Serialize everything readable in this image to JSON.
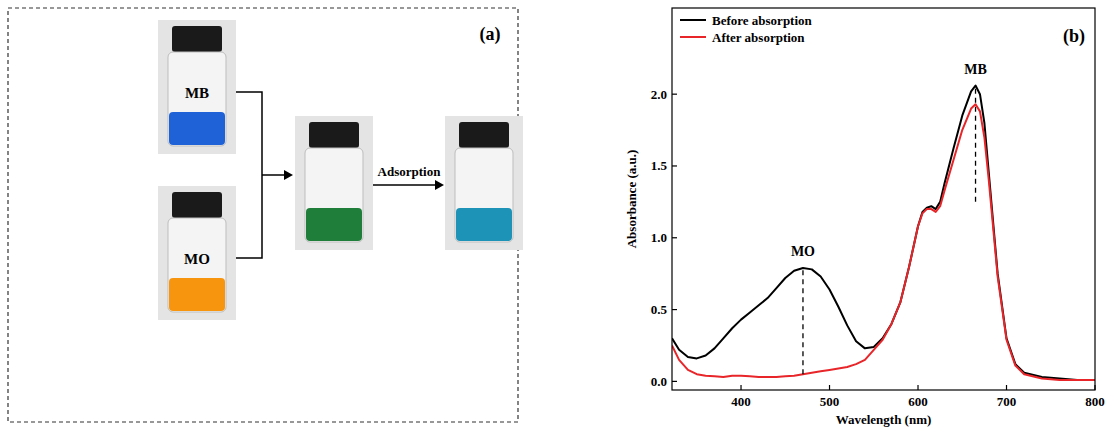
{
  "panel_a": {
    "panel_label": "(a)",
    "vials": [
      "MB",
      "MO"
    ],
    "arrow_label": "Adsorption"
  },
  "chart_data": {
    "type": "line",
    "panel_label": "(b)",
    "x_label": "Wavelength (nm)",
    "y_label": "Absorbance (a.u.)",
    "x": [
      322,
      330,
      340,
      350,
      360,
      370,
      380,
      390,
      400,
      410,
      420,
      430,
      440,
      450,
      460,
      470,
      480,
      490,
      500,
      510,
      520,
      530,
      540,
      550,
      560,
      570,
      580,
      590,
      600,
      605,
      610,
      615,
      620,
      625,
      630,
      640,
      650,
      660,
      665,
      670,
      675,
      680,
      690,
      700,
      710,
      720,
      740,
      760,
      780,
      800
    ],
    "series": [
      {
        "name": "Before absorption",
        "color": "#000000",
        "values": [
          0.3,
          0.22,
          0.17,
          0.16,
          0.18,
          0.23,
          0.3,
          0.37,
          0.43,
          0.48,
          0.53,
          0.58,
          0.65,
          0.72,
          0.77,
          0.79,
          0.78,
          0.73,
          0.64,
          0.52,
          0.39,
          0.28,
          0.23,
          0.24,
          0.3,
          0.4,
          0.55,
          0.8,
          1.08,
          1.18,
          1.21,
          1.22,
          1.2,
          1.25,
          1.38,
          1.62,
          1.85,
          2.02,
          2.06,
          2.0,
          1.8,
          1.45,
          0.75,
          0.3,
          0.12,
          0.06,
          0.03,
          0.02,
          0.01,
          0.01
        ]
      },
      {
        "name": "After absorption",
        "color": "#e8262a",
        "values": [
          0.25,
          0.15,
          0.08,
          0.05,
          0.04,
          0.035,
          0.03,
          0.04,
          0.04,
          0.035,
          0.03,
          0.03,
          0.03,
          0.035,
          0.04,
          0.05,
          0.06,
          0.07,
          0.08,
          0.09,
          0.1,
          0.12,
          0.15,
          0.22,
          0.29,
          0.4,
          0.55,
          0.8,
          1.08,
          1.17,
          1.2,
          1.2,
          1.18,
          1.22,
          1.33,
          1.54,
          1.75,
          1.9,
          1.93,
          1.88,
          1.7,
          1.4,
          0.73,
          0.29,
          0.11,
          0.05,
          0.02,
          0.01,
          0.01,
          0.01
        ]
      }
    ],
    "annotations": [
      {
        "text": "MO",
        "x": 470,
        "y0": 0.05,
        "y1": 0.79
      },
      {
        "text": "MB",
        "x": 665,
        "y0": 1.25,
        "y1": 2.06
      }
    ],
    "xlim": [
      322,
      800
    ],
    "xticks": [
      400,
      500,
      600,
      700,
      800
    ],
    "ylim": [
      -0.06,
      2.6
    ],
    "yticks": [
      {
        "value": 0,
        "label": "0.0"
      },
      {
        "value": 0.5,
        "label": "0.5"
      },
      {
        "value": 1,
        "label": "1.0"
      },
      {
        "value": 1.5,
        "label": "1.5"
      },
      {
        "value": 2,
        "label": "2.0"
      }
    ],
    "grid": false,
    "legend": "upper left"
  }
}
